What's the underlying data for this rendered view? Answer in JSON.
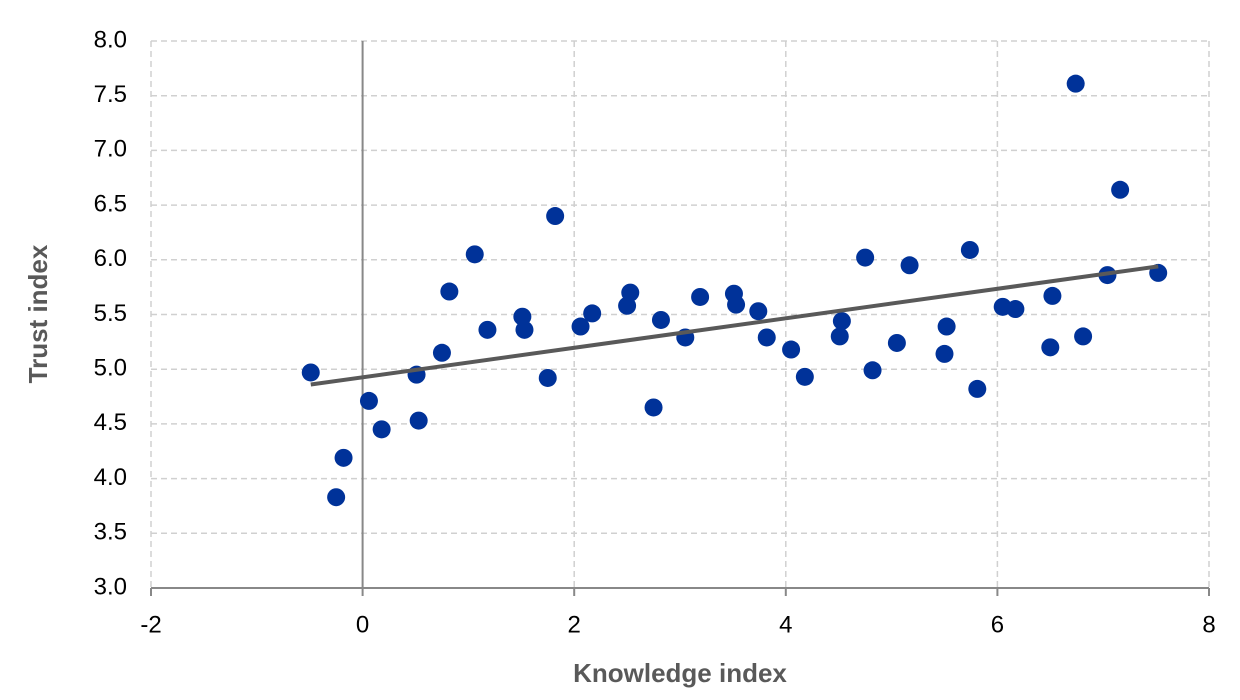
{
  "chart_data": {
    "type": "scatter",
    "x_label": "Knowledge index",
    "y_label": "Trust index",
    "xlim": [
      -2,
      8
    ],
    "xticks": [
      -2,
      0,
      2,
      4,
      6,
      8
    ],
    "ylim": [
      3,
      8
    ],
    "yticks": [
      {
        "value": 3,
        "label": "3.0"
      },
      3.5,
      {
        "value": 4,
        "label": "4.0"
      },
      4.5,
      {
        "value": 5,
        "label": "5.0"
      },
      5.5,
      {
        "value": 6,
        "label": "6.0"
      },
      6.5,
      {
        "value": 7,
        "label": "7.0"
      },
      7.5,
      {
        "value": 8,
        "label": "8.0"
      }
    ],
    "grid": true,
    "color": "#003299",
    "x": [
      -0.49,
      -0.25,
      -0.18,
      0.06,
      0.18,
      0.51,
      0.53,
      0.75,
      0.82,
      1.06,
      1.18,
      1.51,
      1.53,
      1.75,
      1.82,
      2.06,
      2.17,
      2.5,
      2.53,
      2.75,
      2.82,
      3.05,
      3.19,
      3.51,
      3.53,
      3.74,
      3.82,
      4.05,
      4.18,
      4.51,
      4.53,
      4.75,
      4.82,
      5.05,
      5.17,
      5.5,
      5.52,
      5.74,
      5.81,
      6.05,
      6.17,
      6.5,
      6.52,
      6.74,
      6.81,
      7.04,
      7.16,
      7.52
    ],
    "y": [
      4.97,
      3.83,
      4.19,
      4.71,
      4.45,
      4.95,
      4.53,
      5.15,
      5.71,
      6.05,
      5.36,
      5.48,
      5.36,
      4.92,
      6.4,
      5.39,
      5.51,
      5.58,
      5.7,
      4.65,
      5.45,
      5.29,
      5.66,
      5.69,
      5.59,
      5.53,
      5.29,
      5.18,
      4.93,
      5.3,
      5.44,
      6.02,
      4.99,
      5.24,
      5.95,
      5.14,
      5.39,
      6.09,
      4.82,
      5.57,
      5.55,
      5.2,
      5.67,
      7.61,
      5.3,
      5.86,
      6.64,
      5.88
    ],
    "trend": {
      "x": [
        -0.49,
        7.52
      ],
      "y": [
        4.86,
        5.94
      ],
      "color": "#595959"
    }
  }
}
